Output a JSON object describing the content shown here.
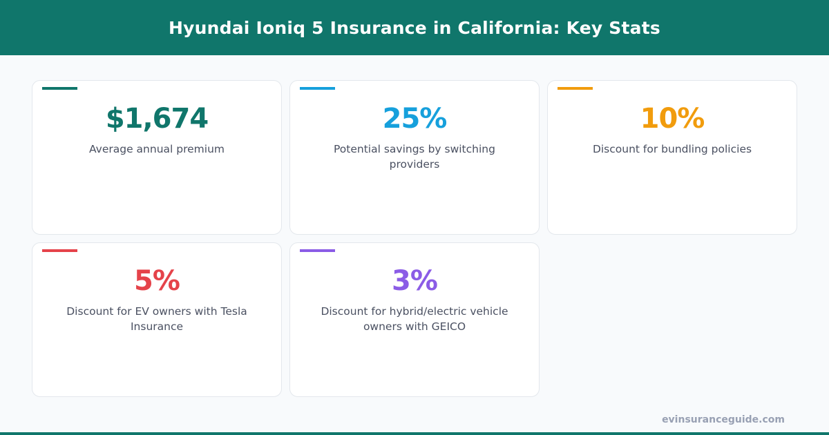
{
  "header": {
    "title": "Hyundai Ioniq 5 Insurance in California: Key Stats"
  },
  "cards": [
    {
      "value": "$1,674",
      "label": "Average annual premium",
      "color": "#10766b"
    },
    {
      "value": "25%",
      "label": "Potential savings by switching providers",
      "color": "#16a0dc"
    },
    {
      "value": "10%",
      "label": "Discount for bundling policies",
      "color": "#f19c0d"
    },
    {
      "value": "5%",
      "label": "Discount for EV owners with Tesla Insurance",
      "color": "#e5434a"
    },
    {
      "value": "3%",
      "label": "Discount for hybrid/electric vehicle owners with GEICO",
      "color": "#8b5ce6"
    }
  ],
  "footer": {
    "site": "evinsuranceguide.com"
  }
}
